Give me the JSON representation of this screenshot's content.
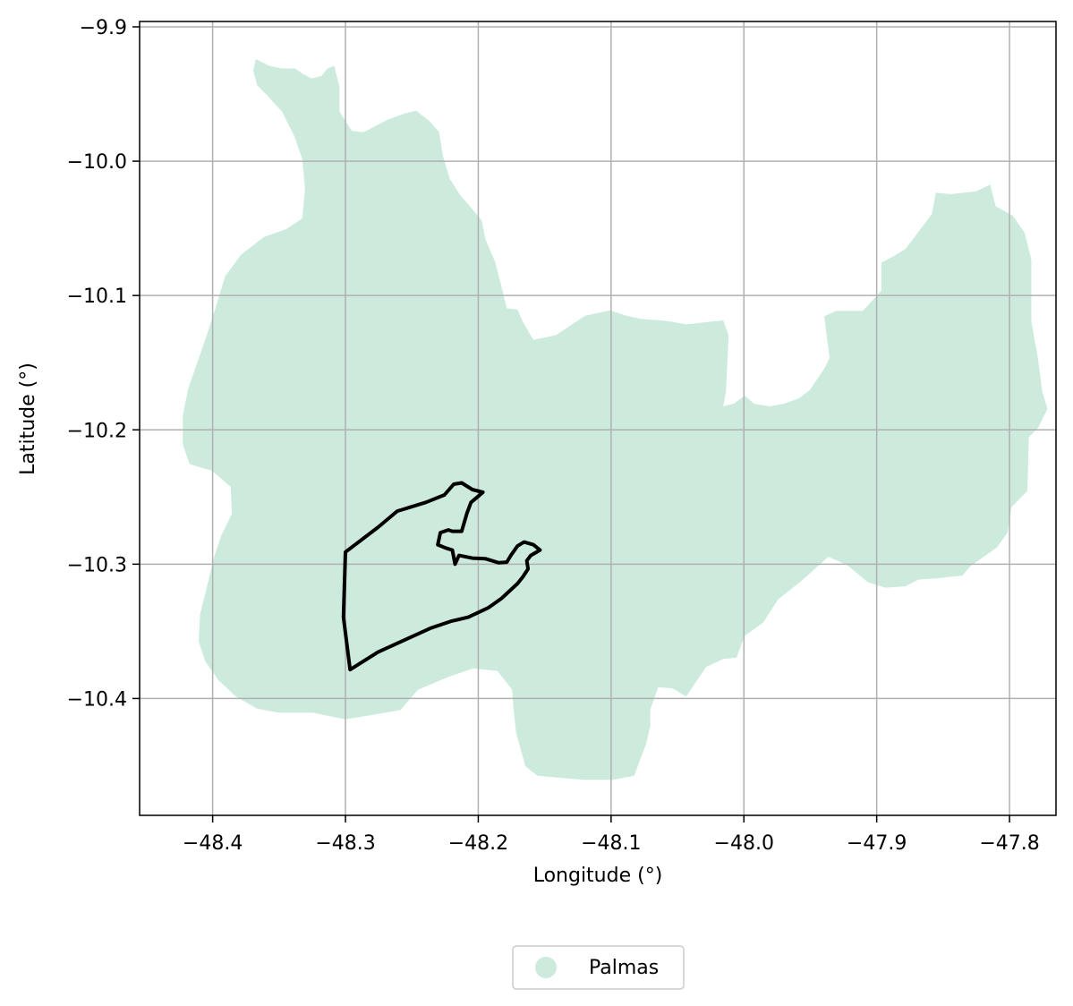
{
  "chart_data": {
    "type": "map",
    "xlabel": "Longitude (°)",
    "ylabel": "Latitude (°)",
    "xlim": [
      -48.455,
      -47.765
    ],
    "ylim": [
      -10.487,
      -9.896
    ],
    "x_ticks": [
      {
        "value": -48.4,
        "label": "−48.4"
      },
      {
        "value": -48.3,
        "label": "−48.3"
      },
      {
        "value": -48.2,
        "label": "−48.2"
      },
      {
        "value": -48.1,
        "label": "−48.1"
      },
      {
        "value": -48.0,
        "label": "−48.0"
      },
      {
        "value": -47.9,
        "label": "−47.9"
      },
      {
        "value": -47.8,
        "label": "−47.8"
      }
    ],
    "y_ticks": [
      {
        "value": -9.9,
        "label": "−9.9"
      },
      {
        "value": -10.0,
        "label": "−10.0"
      },
      {
        "value": -10.1,
        "label": "−10.1"
      },
      {
        "value": -10.2,
        "label": "−10.2"
      },
      {
        "value": -10.3,
        "label": "−10.3"
      },
      {
        "value": -10.4,
        "label": "−10.4"
      }
    ],
    "grid": true,
    "legend": {
      "placement": "bottom-center",
      "entries": [
        {
          "label": "Palmas",
          "color": "#cdebdd"
        }
      ]
    },
    "region_color": "#cdebdd",
    "outline_color": "#000000",
    "region_polygon": [
      [
        -48.3675,
        -9.924
      ],
      [
        -48.3575,
        -9.929
      ],
      [
        -48.348,
        -9.931
      ],
      [
        -48.338,
        -9.931
      ],
      [
        -48.332,
        -9.935
      ],
      [
        -48.3255,
        -9.9385
      ],
      [
        -48.318,
        -9.9365
      ],
      [
        -48.3135,
        -9.931
      ],
      [
        -48.3085,
        -9.929
      ],
      [
        -48.3045,
        -9.945
      ],
      [
        -48.3045,
        -9.963
      ],
      [
        -48.2985,
        -9.9725
      ],
      [
        -48.295,
        -9.9775
      ],
      [
        -48.2865,
        -9.9785
      ],
      [
        -48.269,
        -9.9695
      ],
      [
        -48.2555,
        -9.9645
      ],
      [
        -48.2465,
        -9.9625
      ],
      [
        -48.2365,
        -9.9705
      ],
      [
        -48.2295,
        -9.9785
      ],
      [
        -48.2265,
        -9.9965
      ],
      [
        -48.2215,
        -10.013
      ],
      [
        -48.2135,
        -10.0255
      ],
      [
        -48.2055,
        -10.0345
      ],
      [
        -48.1975,
        -10.044
      ],
      [
        -48.1945,
        -10.0585
      ],
      [
        -48.1875,
        -10.0745
      ],
      [
        -48.1825,
        -10.0935
      ],
      [
        -48.1785,
        -10.1095
      ],
      [
        -48.1705,
        -10.1105
      ],
      [
        -48.1665,
        -10.1195
      ],
      [
        -48.1585,
        -10.133
      ],
      [
        -48.1415,
        -10.1295
      ],
      [
        -48.1195,
        -10.115
      ],
      [
        -48.1005,
        -10.111
      ],
      [
        -48.0885,
        -10.115
      ],
      [
        -48.0775,
        -10.1175
      ],
      [
        -48.0635,
        -10.1185
      ],
      [
        -48.0545,
        -10.1195
      ],
      [
        -48.0435,
        -10.1215
      ],
      [
        -48.0155,
        -10.1185
      ],
      [
        -48.0115,
        -10.1295
      ],
      [
        -48.0135,
        -10.1715
      ],
      [
        -48.0155,
        -10.1825
      ],
      [
        -48.0075,
        -10.1805
      ],
      [
        -47.9995,
        -10.1745
      ],
      [
        -47.9925,
        -10.1805
      ],
      [
        -47.9805,
        -10.1825
      ],
      [
        -47.9695,
        -10.1805
      ],
      [
        -47.9585,
        -10.1765
      ],
      [
        -47.9505,
        -10.1705
      ],
      [
        -47.9395,
        -10.1545
      ],
      [
        -47.9355,
        -10.1465
      ],
      [
        -47.9395,
        -10.1155
      ],
      [
        -47.9305,
        -10.1115
      ],
      [
        -47.9105,
        -10.1115
      ],
      [
        -47.8965,
        -10.0965
      ],
      [
        -47.8965,
        -10.0755
      ],
      [
        -47.8905,
        -10.0725
      ],
      [
        -47.8785,
        -10.0655
      ],
      [
        -47.8655,
        -10.0485
      ],
      [
        -47.8585,
        -10.0395
      ],
      [
        -47.8555,
        -10.0235
      ],
      [
        -47.8445,
        -10.0245
      ],
      [
        -47.8255,
        -10.0225
      ],
      [
        -47.8145,
        -10.0175
      ],
      [
        -47.8105,
        -10.0335
      ],
      [
        -47.7975,
        -10.0405
      ],
      [
        -47.7885,
        -10.0535
      ],
      [
        -47.7835,
        -10.0735
      ],
      [
        -47.7835,
        -10.1195
      ],
      [
        -47.7785,
        -10.1475
      ],
      [
        -47.7755,
        -10.1705
      ],
      [
        -47.7715,
        -10.1845
      ],
      [
        -47.7785,
        -10.1985
      ],
      [
        -47.7855,
        -10.2055
      ],
      [
        -47.7865,
        -10.2455
      ],
      [
        -47.7985,
        -10.2575
      ],
      [
        -47.8015,
        -10.2765
      ],
      [
        -47.8095,
        -10.2875
      ],
      [
        -47.8295,
        -10.3015
      ],
      [
        -47.8355,
        -10.3085
      ],
      [
        -47.8545,
        -10.3105
      ],
      [
        -47.8685,
        -10.3115
      ],
      [
        -47.8785,
        -10.3165
      ],
      [
        -47.8935,
        -10.3175
      ],
      [
        -47.9065,
        -10.3135
      ],
      [
        -47.9225,
        -10.3005
      ],
      [
        -47.9365,
        -10.2945
      ],
      [
        -47.9555,
        -10.3115
      ],
      [
        -47.9745,
        -10.3265
      ],
      [
        -47.9855,
        -10.3435
      ],
      [
        -47.9995,
        -10.3535
      ],
      [
        -48.0055,
        -10.3695
      ],
      [
        -48.0155,
        -10.3705
      ],
      [
        -48.0285,
        -10.3765
      ],
      [
        -48.0435,
        -10.3985
      ],
      [
        -48.0535,
        -10.3925
      ],
      [
        -48.0645,
        -10.3915
      ],
      [
        -48.0705,
        -10.4085
      ],
      [
        -48.0705,
        -10.4205
      ],
      [
        -48.0735,
        -10.4335
      ],
      [
        -48.0785,
        -10.4465
      ],
      [
        -48.0825,
        -10.4575
      ],
      [
        -48.0985,
        -10.4605
      ],
      [
        -48.1205,
        -10.4605
      ],
      [
        -48.1445,
        -10.4585
      ],
      [
        -48.1555,
        -10.4575
      ],
      [
        -48.1645,
        -10.4505
      ],
      [
        -48.1715,
        -10.4255
      ],
      [
        -48.1735,
        -10.4075
      ],
      [
        -48.1745,
        -10.3935
      ],
      [
        -48.1855,
        -10.3795
      ],
      [
        -48.2035,
        -10.3775
      ],
      [
        -48.2215,
        -10.3835
      ],
      [
        -48.2455,
        -10.3935
      ],
      [
        -48.2585,
        -10.4085
      ],
      [
        -48.2815,
        -10.4125
      ],
      [
        -48.3005,
        -10.4155
      ],
      [
        -48.3245,
        -10.4105
      ],
      [
        -48.3505,
        -10.4105
      ],
      [
        -48.3665,
        -10.4075
      ],
      [
        -48.3825,
        -10.3985
      ],
      [
        -48.3955,
        -10.3865
      ],
      [
        -48.4055,
        -10.3725
      ],
      [
        -48.4105,
        -10.3575
      ],
      [
        -48.4095,
        -10.3375
      ],
      [
        -48.4035,
        -10.3135
      ],
      [
        -48.3985,
        -10.2935
      ],
      [
        -48.3935,
        -10.2785
      ],
      [
        -48.3855,
        -10.2625
      ],
      [
        -48.3865,
        -10.2425
      ],
      [
        -48.4005,
        -10.2305
      ],
      [
        -48.4175,
        -10.2255
      ],
      [
        -48.4225,
        -10.2105
      ],
      [
        -48.4225,
        -10.1895
      ],
      [
        -48.4185,
        -10.1695
      ],
      [
        -48.4125,
        -10.1525
      ],
      [
        -48.4055,
        -10.1325
      ],
      [
        -48.3985,
        -10.1115
      ],
      [
        -48.3905,
        -10.0855
      ],
      [
        -48.3785,
        -10.0695
      ],
      [
        -48.3615,
        -10.0565
      ],
      [
        -48.3445,
        -10.0505
      ],
      [
        -48.3325,
        -10.0425
      ],
      [
        -48.3305,
        -10.0205
      ],
      [
        -48.3325,
        -9.9985
      ],
      [
        -48.3385,
        -9.9815
      ],
      [
        -48.3475,
        -9.9635
      ],
      [
        -48.3585,
        -9.9515
      ],
      [
        -48.3665,
        -9.9435
      ],
      [
        -48.3695,
        -9.9325
      ]
    ],
    "outline_polygon": [
      [
        -48.3,
        -10.291
      ],
      [
        -48.2755,
        -10.2725
      ],
      [
        -48.261,
        -10.2605
      ],
      [
        -48.2395,
        -10.254
      ],
      [
        -48.2255,
        -10.2485
      ],
      [
        -48.2185,
        -10.2405
      ],
      [
        -48.2125,
        -10.2395
      ],
      [
        -48.2045,
        -10.2445
      ],
      [
        -48.1965,
        -10.2465
      ],
      [
        -48.1995,
        -10.249
      ],
      [
        -48.2055,
        -10.254
      ],
      [
        -48.2085,
        -10.262
      ],
      [
        -48.2125,
        -10.2755
      ],
      [
        -48.2195,
        -10.2755
      ],
      [
        -48.2225,
        -10.2745
      ],
      [
        -48.2285,
        -10.2765
      ],
      [
        -48.2305,
        -10.2855
      ],
      [
        -48.2245,
        -10.288
      ],
      [
        -48.2195,
        -10.2895
      ],
      [
        -48.2175,
        -10.3
      ],
      [
        -48.2145,
        -10.2935
      ],
      [
        -48.2045,
        -10.2955
      ],
      [
        -48.1945,
        -10.296
      ],
      [
        -48.1845,
        -10.299
      ],
      [
        -48.1785,
        -10.2985
      ],
      [
        -48.1755,
        -10.2935
      ],
      [
        -48.1705,
        -10.2865
      ],
      [
        -48.1655,
        -10.2835
      ],
      [
        -48.1585,
        -10.2855
      ],
      [
        -48.1535,
        -10.2895
      ],
      [
        -48.1605,
        -10.2935
      ],
      [
        -48.1635,
        -10.2975
      ],
      [
        -48.1625,
        -10.3035
      ],
      [
        -48.1665,
        -10.3095
      ],
      [
        -48.1705,
        -10.3145
      ],
      [
        -48.1825,
        -10.3255
      ],
      [
        -48.1925,
        -10.3325
      ],
      [
        -48.2075,
        -10.3395
      ],
      [
        -48.2205,
        -10.3425
      ],
      [
        -48.2355,
        -10.3475
      ],
      [
        -48.2755,
        -10.3655
      ],
      [
        -48.2965,
        -10.3785
      ],
      [
        -48.3015,
        -10.3395
      ]
    ]
  }
}
